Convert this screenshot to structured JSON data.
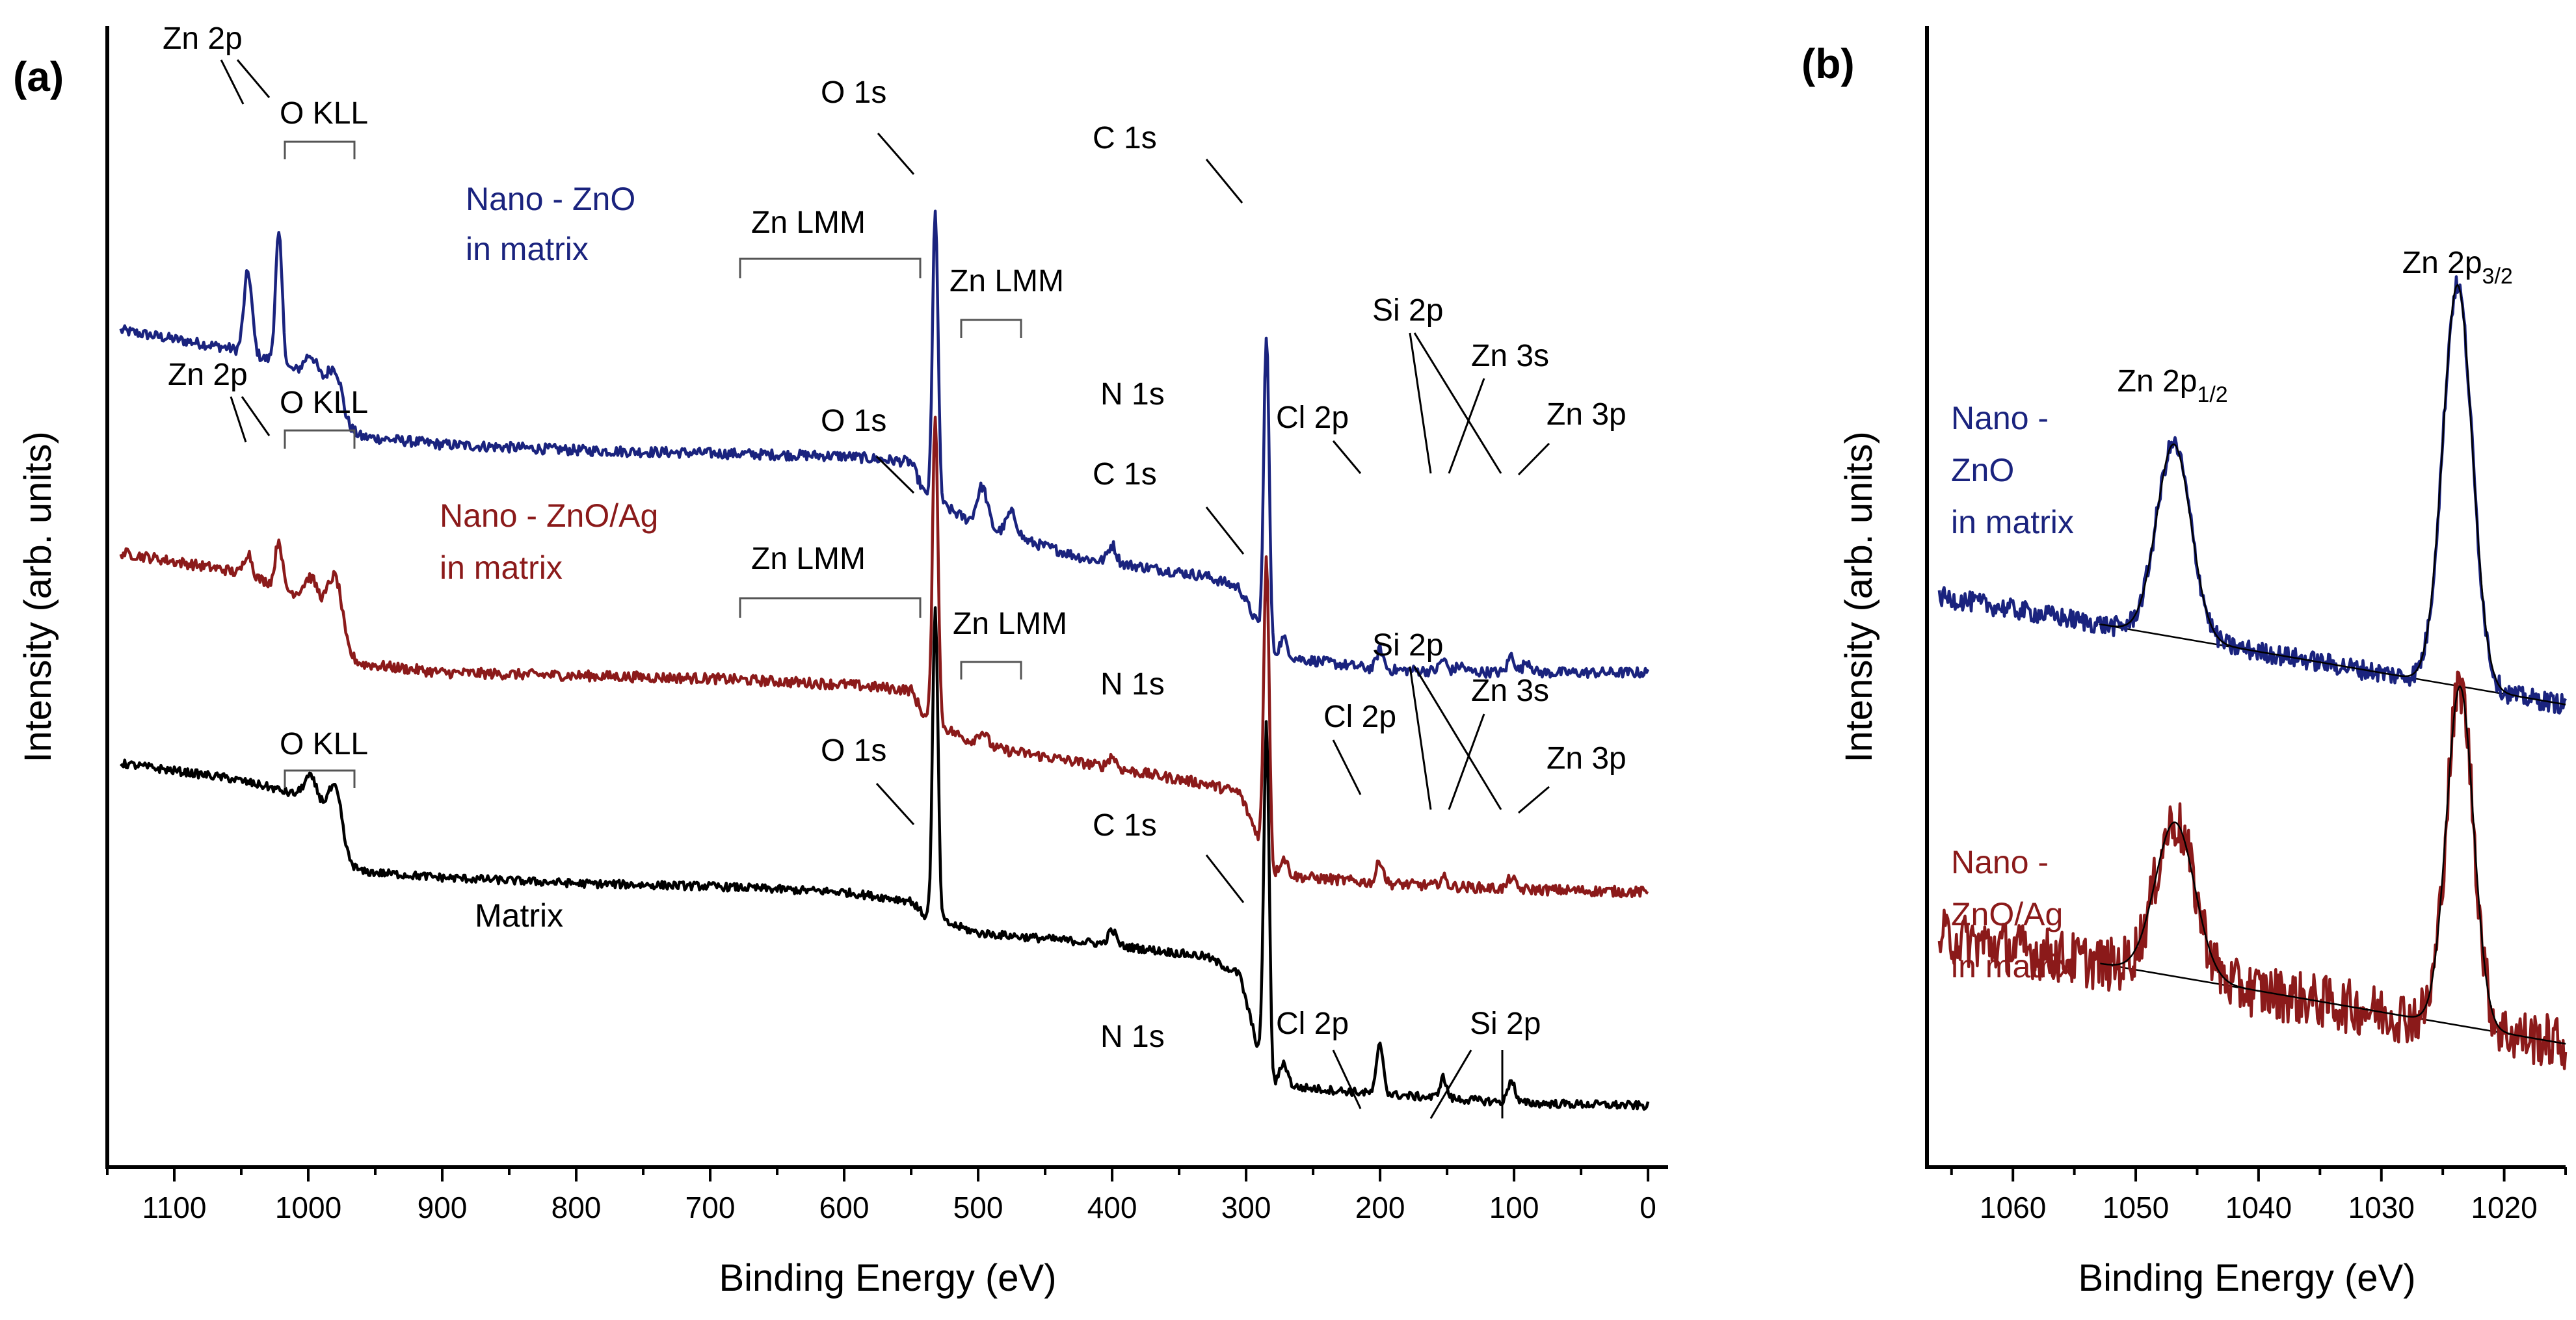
{
  "chart_data": [
    {
      "panel": "(a)",
      "type": "line",
      "xlabel": "Binding Energy (eV)",
      "ylabel": "Intensity (arb. units)",
      "xlim": [
        1150,
        -15
      ],
      "x_ticks": [
        1100,
        1000,
        900,
        800,
        700,
        600,
        500,
        400,
        300,
        200,
        100,
        0
      ],
      "series": [
        {
          "name": "Nano - ZnO in matrix",
          "label_lines": [
            "Nano - ZnO",
            "in matrix"
          ],
          "color": "#1a237e",
          "offset": 8.1,
          "base": [
            [
              1140,
              2.0
            ],
            [
              1060,
              1.7
            ],
            [
              1030,
              1.5
            ],
            [
              1000,
              1.2
            ],
            [
              985,
              1.0
            ],
            [
              972,
              0.35
            ],
            [
              960,
              0.18
            ],
            [
              900,
              0.05
            ],
            [
              800,
              -0.05
            ],
            [
              700,
              -0.1
            ],
            [
              600,
              -0.15
            ],
            [
              550,
              -0.25
            ],
            [
              540,
              -0.8
            ],
            [
              500,
              -1.35
            ],
            [
              420,
              -1.9
            ],
            [
              330,
              -2.2
            ],
            [
              305,
              -2.4
            ],
            [
              292,
              -3.0
            ],
            [
              280,
              -3.55
            ],
            [
              200,
              -3.8
            ],
            [
              100,
              -3.85
            ],
            [
              0,
              -3.85
            ]
          ],
          "peaks": [
            [
              1045,
              1.4,
              3
            ],
            [
              1022,
              2.2,
              2.5
            ],
            [
              998,
              0.4,
              5
            ],
            [
              979,
              0.6,
              5
            ],
            [
              532,
              5.0,
              2
            ],
            [
              497,
              0.7,
              4
            ],
            [
              475,
              0.4,
              4
            ],
            [
              400,
              0.3,
              3
            ],
            [
              284.8,
              5.3,
              2
            ],
            [
              272,
              0.3,
              3
            ],
            [
              200,
              0.35,
              2.5
            ],
            [
              153,
              0.2,
              2.5
            ],
            [
              140,
              0.1,
              3
            ],
            [
              102,
              0.3,
              2.5
            ],
            [
              90,
              0.2,
              3
            ]
          ],
          "noise": 0.09
        },
        {
          "name": "Nano - ZnO/Ag in matrix",
          "label_lines": [
            "Nano - ZnO/Ag",
            "in matrix"
          ],
          "color": "#8b1a1a",
          "offset": 4.3,
          "base": [
            [
              1140,
              2.0
            ],
            [
              1060,
              1.7
            ],
            [
              1030,
              1.5
            ],
            [
              1000,
              1.2
            ],
            [
              985,
              1.0
            ],
            [
              972,
              0.25
            ],
            [
              960,
              0.1
            ],
            [
              900,
              -0.05
            ],
            [
              800,
              -0.1
            ],
            [
              700,
              -0.15
            ],
            [
              600,
              -0.25
            ],
            [
              550,
              -0.35
            ],
            [
              540,
              -0.8
            ],
            [
              500,
              -1.3
            ],
            [
              420,
              -1.6
            ],
            [
              330,
              -1.95
            ],
            [
              305,
              -2.1
            ],
            [
              292,
              -2.8
            ],
            [
              280,
              -3.5
            ],
            [
              200,
              -3.65
            ],
            [
              100,
              -3.75
            ],
            [
              0,
              -3.8
            ]
          ],
          "peaks": [
            [
              1045,
              0.4,
              3
            ],
            [
              1022,
              0.8,
              2.5
            ],
            [
              998,
              0.4,
              5
            ],
            [
              979,
              0.9,
              5
            ],
            [
              532,
              5.3,
              2
            ],
            [
              497,
              0.25,
              4
            ],
            [
              400,
              0.2,
              3
            ],
            [
              284.8,
              5.2,
              2
            ],
            [
              272,
              0.3,
              3
            ],
            [
              200,
              0.4,
              2.5
            ],
            [
              153,
              0.15,
              2.5
            ],
            [
              102,
              0.2,
              2.5
            ]
          ],
          "noise": 0.09
        },
        {
          "name": "Matrix",
          "label_lines": [
            "Matrix"
          ],
          "color": "#000000",
          "offset": 0,
          "base": [
            [
              1140,
              2.7
            ],
            [
              1060,
              2.45
            ],
            [
              1030,
              2.3
            ],
            [
              1000,
              2.1
            ],
            [
              985,
              1.8
            ],
            [
              972,
              1.0
            ],
            [
              960,
              0.85
            ],
            [
              900,
              0.75
            ],
            [
              800,
              0.65
            ],
            [
              700,
              0.6
            ],
            [
              600,
              0.5
            ],
            [
              550,
              0.35
            ],
            [
              540,
              0.1
            ],
            [
              500,
              -0.2
            ],
            [
              420,
              -0.35
            ],
            [
              330,
              -0.6
            ],
            [
              305,
              -0.9
            ],
            [
              292,
              -2.1
            ],
            [
              280,
              -2.8
            ],
            [
              200,
              -2.95
            ],
            [
              100,
              -3.1
            ],
            [
              0,
              -3.15
            ]
          ],
          "peaks": [
            [
              998,
              0.4,
              5
            ],
            [
              979,
              0.8,
              5
            ],
            [
              532,
              5.3,
              2
            ],
            [
              400,
              0.25,
              3
            ],
            [
              284.8,
              5.9,
              2
            ],
            [
              272,
              0.4,
              3
            ],
            [
              200,
              0.85,
              2.5
            ],
            [
              153,
              0.35,
              2.5
            ],
            [
              102,
              0.4,
              2.5
            ]
          ],
          "noise": 0.07
        }
      ],
      "annotations": {
        "series1": {
          "zn2p": "Zn 2p",
          "okll": "O KLL",
          "o1s": "O 1s",
          "znlmm_a": "Zn LMM",
          "znlmm_b": "Zn LMM",
          "c1s": "C 1s",
          "n1s": "N 1s",
          "cl2p": "Cl 2p",
          "si2p": "Si 2p",
          "zn3s": "Zn 3s",
          "zn3p": "Zn 3p"
        },
        "series2": {
          "zn2p": "Zn 2p",
          "okll": "O KLL",
          "o1s": "O 1s",
          "znlmm_a": "Zn LMM",
          "znlmm_b": "Zn LMM",
          "c1s": "C 1s",
          "n1s": "N 1s",
          "cl2p": "Cl 2p",
          "si2p": "Si 2p",
          "zn3s": "Zn 3s",
          "zn3p": "Zn 3p"
        },
        "series3": {
          "okll": "O KLL",
          "o1s": "O 1s",
          "c1s": "C 1s",
          "n1s": "N 1s",
          "cl2p": "Cl 2p",
          "si2p": "Si 2p"
        }
      }
    },
    {
      "panel": "(b)",
      "type": "line",
      "xlabel": "Binding Energy (eV)",
      "ylabel": "Intensity (arb. units)",
      "xlim": [
        1067,
        1015
      ],
      "x_ticks": [
        1060,
        1050,
        1040,
        1030,
        1020
      ],
      "peak_labels": {
        "p12_main": "Zn 2p",
        "p12_sub": "1/2",
        "p12_x": 1047,
        "p32_main": "Zn 2p",
        "p32_sub": "3/2",
        "p32_x": 1023.8
      },
      "series": [
        {
          "name": "Nano - ZnO in matrix",
          "label_lines": [
            "Nano -",
            "ZnO",
            "in matrix"
          ],
          "color": "#1a237e",
          "baseline": [
            [
              1066,
              6.4
            ],
            [
              1015,
              5.0
            ]
          ],
          "peaks": [
            [
              1046.9,
              2.5,
              1.4
            ],
            [
              1023.8,
              5.2,
              1.2
            ]
          ],
          "noise": 0.13
        },
        {
          "name": "Nano - ZnO/Ag in matrix",
          "label_lines": [
            "Nano -",
            "ZnO/Ag",
            "in matrix"
          ],
          "color": "#8b1a1a",
          "baseline": [
            [
              1066,
              2.0
            ],
            [
              1015,
              0.6
            ]
          ],
          "peaks": [
            [
              1046.8,
              2.0,
              1.6
            ],
            [
              1023.6,
              4.4,
              1.1
            ]
          ],
          "noise": 0.35
        }
      ]
    }
  ]
}
